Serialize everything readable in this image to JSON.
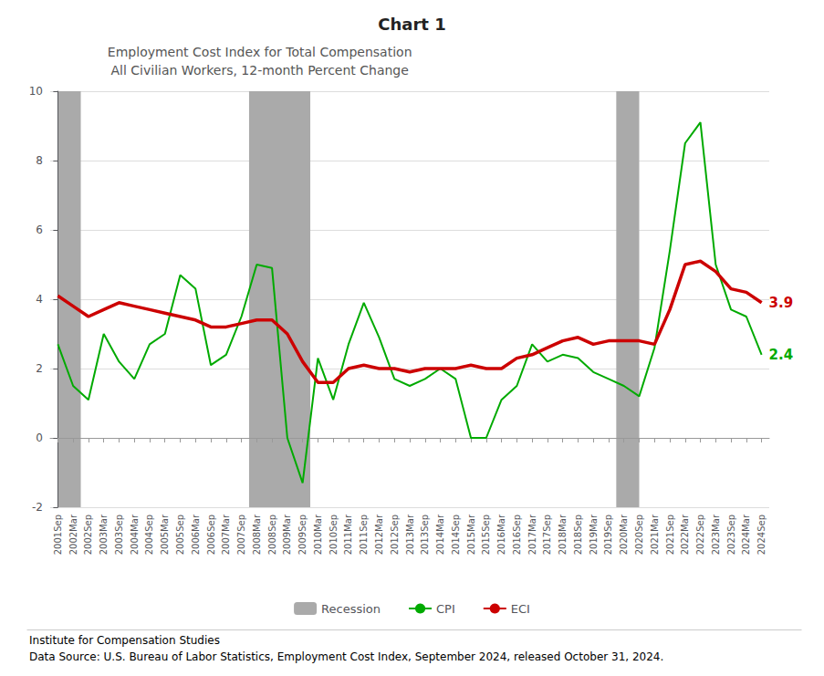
{
  "chart_data": {
    "type": "line",
    "title": "Chart 1",
    "subtitle": [
      "Employment Cost Index for Total Compensation",
      "All Civilian Workers, 12-month Percent Change"
    ],
    "footer": [
      "Institute for Compensation Studies",
      "Data Source: U.S. Bureau of Labor Statistics, Employment Cost Index, September 2024, released October 31, 2024."
    ],
    "categories": [
      "2001Sep",
      "2002Mar",
      "2002Sep",
      "2003Mar",
      "2003Sep",
      "2004Mar",
      "2004Sep",
      "2005Mar",
      "2005Sep",
      "2006Mar",
      "2006Sep",
      "2007Mar",
      "2007Sep",
      "2008Mar",
      "2008Sep",
      "2009Mar",
      "2009Sep",
      "2010Mar",
      "2010Sep",
      "2011Mar",
      "2011Sep",
      "2012Mar",
      "2012Sep",
      "2013Mar",
      "2013Sep",
      "2014Mar",
      "2014Sep",
      "2015Mar",
      "2015Sep",
      "2016Mar",
      "2016Sep",
      "2017Mar",
      "2017Sep",
      "2018Mar",
      "2018Sep",
      "2019Mar",
      "2019Sep",
      "2020Mar",
      "2020Sep",
      "2021Mar",
      "2021Sep",
      "2022Mar",
      "2022Sep",
      "2023Mar",
      "2023Sep",
      "2024Mar",
      "2024Sep"
    ],
    "series": [
      {
        "name": "CPI",
        "color": "#00aa00",
        "values": [
          2.7,
          1.5,
          1.1,
          3.0,
          2.2,
          1.7,
          2.7,
          3.0,
          4.7,
          4.3,
          2.1,
          2.4,
          3.5,
          5.0,
          4.9,
          0.0,
          -1.3,
          2.3,
          1.1,
          2.7,
          3.9,
          2.9,
          1.7,
          1.5,
          1.7,
          2.0,
          1.7,
          0.0,
          0.0,
          1.1,
          1.5,
          2.7,
          2.2,
          2.4,
          2.3,
          1.9,
          1.7,
          1.5,
          1.2,
          2.6,
          5.4,
          8.5,
          9.1,
          5.0,
          3.7,
          3.5,
          2.4
        ]
      },
      {
        "name": "ECI",
        "color": "#cc0000",
        "values": [
          4.1,
          3.8,
          3.5,
          3.7,
          3.9,
          3.8,
          3.7,
          3.6,
          3.5,
          3.4,
          3.2,
          3.2,
          3.3,
          3.4,
          3.4,
          3.0,
          2.2,
          1.6,
          1.6,
          2.0,
          2.1,
          2.0,
          2.0,
          1.9,
          2.0,
          2.0,
          2.0,
          2.1,
          2.0,
          2.0,
          2.3,
          2.4,
          2.6,
          2.8,
          2.9,
          2.7,
          2.8,
          2.8,
          2.8,
          2.7,
          3.7,
          5.0,
          5.1,
          4.8,
          4.3,
          4.2,
          3.9
        ]
      }
    ],
    "recession": {
      "name": "Recession",
      "color": "#aaaaaa",
      "bands": [
        [
          0,
          1.5
        ],
        [
          12.5,
          16.5
        ],
        [
          36.5,
          38.0
        ]
      ]
    },
    "annotations": [
      {
        "series": "ECI",
        "text": "3.9",
        "color": "#cc0000"
      },
      {
        "series": "CPI",
        "text": "2.4",
        "color": "#00aa00"
      }
    ],
    "ylim": [
      -2,
      10
    ],
    "yticks": [
      -2,
      0,
      2,
      4,
      6,
      8,
      10
    ],
    "grid": true,
    "legend": "bottom"
  }
}
